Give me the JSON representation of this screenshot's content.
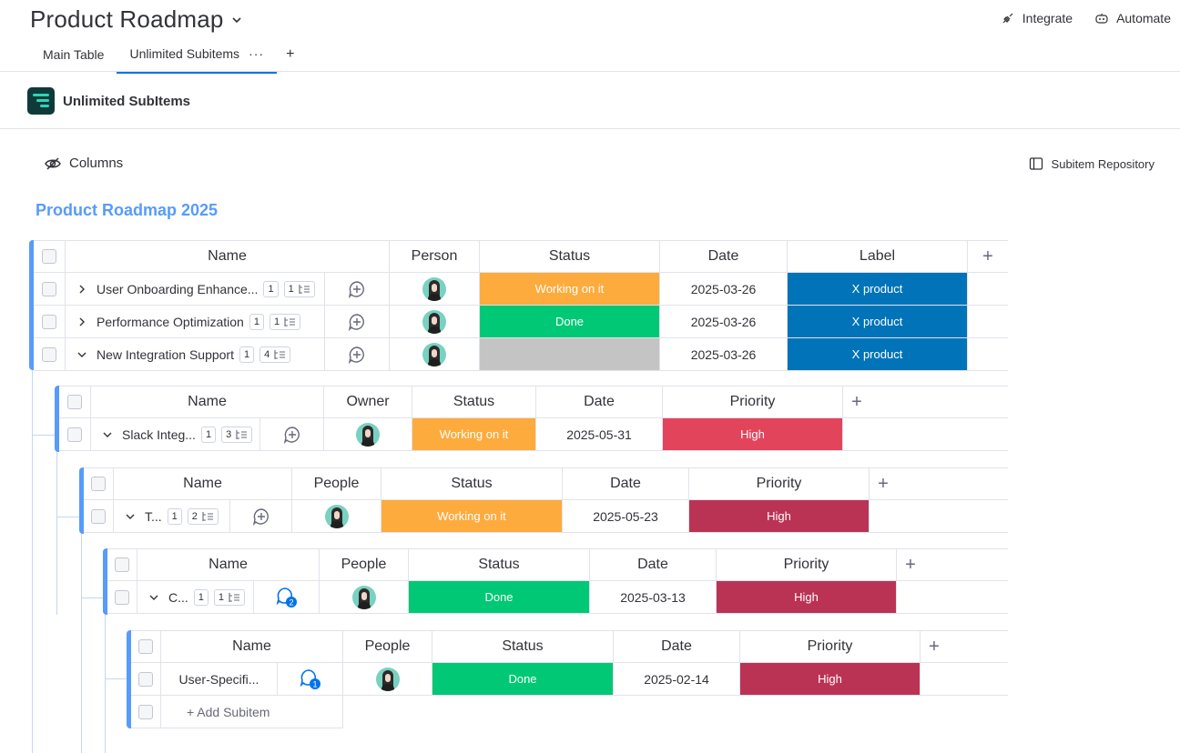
{
  "board": {
    "title": "Product Roadmap"
  },
  "top_actions": {
    "integrate": "Integrate",
    "automate": "Automate"
  },
  "tabs": [
    {
      "label": "Main Table"
    },
    {
      "label": "Unlimited Subitems",
      "more": "···"
    }
  ],
  "tab_add": "+",
  "app": {
    "name": "Unlimited SubItems"
  },
  "toolbar": {
    "columns": "Columns",
    "repository": "Subitem Repository"
  },
  "group": {
    "title": "Product Roadmap 2025"
  },
  "colors": {
    "accent": "#579bfc",
    "working": "#fdab3d",
    "done": "#00c875",
    "empty": "#c4c4c4",
    "label_blue": "#0073b9",
    "high": "#e2445c",
    "high_dark": "#bb3354"
  },
  "main_table": {
    "headers": {
      "name": "Name",
      "person": "Person",
      "status": "Status",
      "date": "Date",
      "label": "Label",
      "add": "+"
    },
    "rows": [
      {
        "name": "User Onboarding Enhance...",
        "updates": "1",
        "subitems": "1",
        "status": "Working on it",
        "date": "2025-03-26",
        "label": "X product"
      },
      {
        "name": "Performance Optimization",
        "updates": "1",
        "subitems": "1",
        "status": "Done",
        "date": "2025-03-26",
        "label": "X product"
      },
      {
        "name": "New Integration Support",
        "updates": "1",
        "subitems": "4",
        "status": "",
        "date": "2025-03-26",
        "label": "X product"
      }
    ]
  },
  "level1": {
    "headers": {
      "name": "Name",
      "owner": "Owner",
      "status": "Status",
      "date": "Date",
      "priority": "Priority",
      "add": "+"
    },
    "row": {
      "name": "Slack Integ...",
      "updates": "1",
      "subitems": "3",
      "status": "Working on it",
      "date": "2025-05-31",
      "priority": "High"
    }
  },
  "level2": {
    "headers": {
      "name": "Name",
      "people": "People",
      "status": "Status",
      "date": "Date",
      "priority": "Priority",
      "add": "+"
    },
    "row": {
      "name": "T...",
      "updates": "1",
      "subitems": "2",
      "status": "Working on it",
      "date": "2025-05-23",
      "priority": "High"
    }
  },
  "level3": {
    "headers": {
      "name": "Name",
      "people": "People",
      "status": "Status",
      "date": "Date",
      "priority": "Priority",
      "add": "+"
    },
    "row": {
      "name": "C...",
      "updates": "1",
      "subitems": "1",
      "update_badge": "2",
      "status": "Done",
      "date": "2025-03-13",
      "priority": "High"
    }
  },
  "level4": {
    "headers": {
      "name": "Name",
      "people": "People",
      "status": "Status",
      "date": "Date",
      "priority": "Priority",
      "add": "+"
    },
    "row": {
      "name": "User-Specifi...",
      "update_badge": "1",
      "status": "Done",
      "date": "2025-02-14",
      "priority": "High"
    },
    "add_subitem": "+ Add Subitem"
  }
}
